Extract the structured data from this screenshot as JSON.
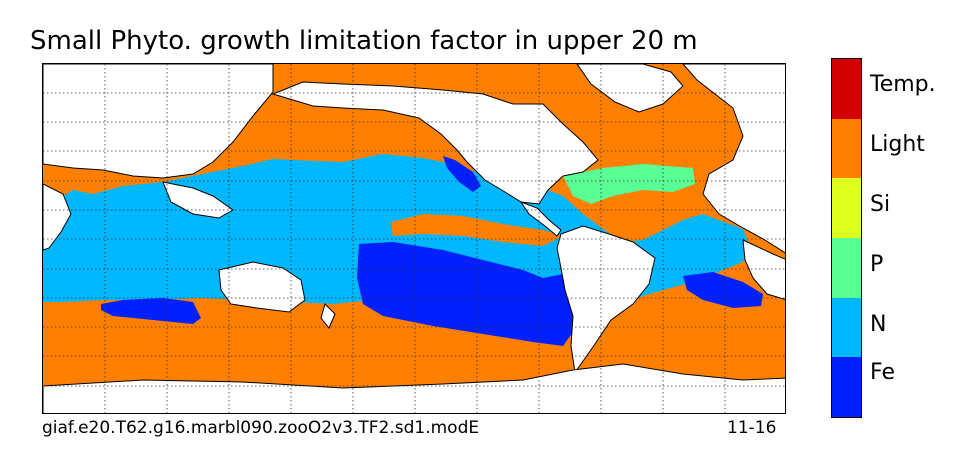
{
  "title": "Small Phyto. growth limitation factor in upper 20 m",
  "footer": {
    "run_name": "giaf.e20.T62.g16.marbl090.zooO2v3.TF2.sd1.modE",
    "period": "11-16"
  },
  "colorbar": {
    "categories": [
      {
        "label": "Temp.",
        "color": "#d40000"
      },
      {
        "label": "Light",
        "color": "#ff8000"
      },
      {
        "label": "Si",
        "color": "#dcff1e"
      },
      {
        "label": "P",
        "color": "#5aff96"
      },
      {
        "label": "N",
        "color": "#00b8ff"
      },
      {
        "label": "Fe",
        "color": "#0020ff"
      }
    ]
  },
  "map": {
    "land_color": "#ffffff",
    "coastline_color": "#000000",
    "gridline_color": "#333333",
    "gridlines": "dotted"
  }
}
